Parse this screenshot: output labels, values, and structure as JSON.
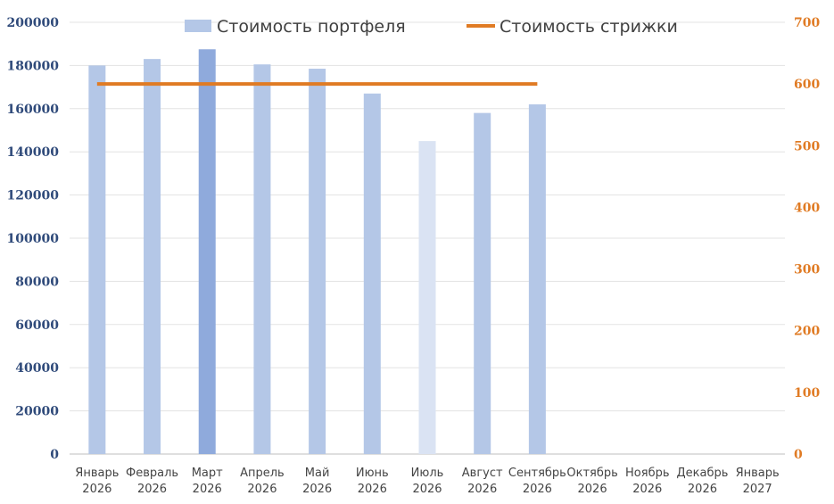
{
  "chart_data": {
    "type": "bar",
    "categories": [
      [
        "Январь",
        "2026"
      ],
      [
        "Февраль",
        "2026"
      ],
      [
        "Март",
        "2026"
      ],
      [
        "Апрель",
        "2026"
      ],
      [
        "Май",
        "2026"
      ],
      [
        "Июнь",
        "2026"
      ],
      [
        "Июль",
        "2026"
      ],
      [
        "Август",
        "2026"
      ],
      [
        "Сентябрь",
        "2026"
      ],
      [
        "Октябрь",
        "2026"
      ],
      [
        "Ноябрь",
        "2026"
      ],
      [
        "Декабрь",
        "2026"
      ],
      [
        "Январь",
        "2027"
      ]
    ],
    "series": [
      {
        "name": "Стоимость портфеля",
        "type": "bar",
        "axis": "left",
        "color": "#b4c7e7",
        "values": [
          180000,
          183000,
          187500,
          180500,
          178500,
          167000,
          145000,
          158000,
          162000,
          null,
          null,
          null,
          null
        ],
        "point_colors": [
          "#b4c7e7",
          "#b4c7e7",
          "#8faadc",
          "#b4c7e7",
          "#b4c7e7",
          "#b4c7e7",
          "#dae3f3",
          "#b4c7e7",
          "#b4c7e7",
          null,
          null,
          null,
          null
        ]
      },
      {
        "name": "Стоимость стрижки",
        "type": "line",
        "axis": "right",
        "color": "#e07b24",
        "values": [
          600,
          600,
          600,
          600,
          600,
          600,
          600,
          600,
          600,
          null,
          null,
          null,
          null
        ]
      }
    ],
    "y_left": {
      "min": 0,
      "max": 200000,
      "ticks": [
        "0",
        "20000",
        "40000",
        "60000",
        "80000",
        "100000",
        "120000",
        "140000",
        "160000",
        "180000",
        "200000"
      ],
      "color": "#2f4a7a"
    },
    "y_right": {
      "min": 0,
      "max": 700,
      "ticks": [
        "0",
        "100",
        "200",
        "300",
        "400",
        "500",
        "600",
        "700"
      ],
      "color": "#e07b24"
    },
    "grid": true,
    "legend": "top"
  }
}
